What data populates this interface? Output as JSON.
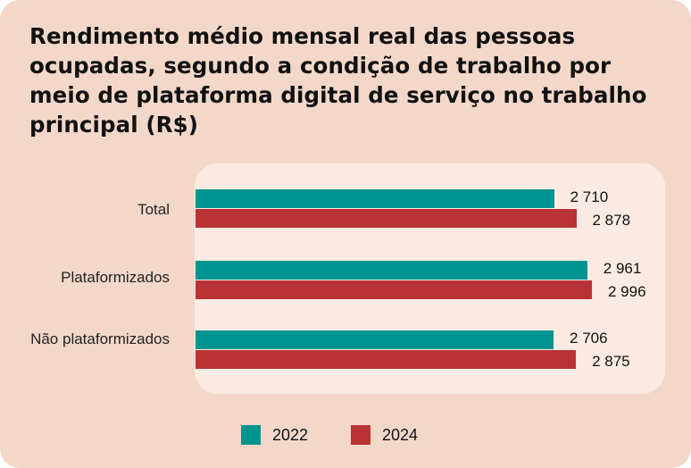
{
  "chart_data": {
    "type": "bar",
    "orientation": "horizontal",
    "title": "Rendimento médio mensal real das pessoas ocupadas, segundo a condição de trabalho por meio de plataforma digital de serviço no trabalho principal (R$)",
    "categories": [
      "Total",
      "Plataformizados",
      "Não plataformizados"
    ],
    "series": [
      {
        "name": "2022",
        "color": "#009490",
        "values": [
          2710,
          2961,
          2706
        ],
        "labels": [
          "2 710",
          "2 961",
          "2 706"
        ]
      },
      {
        "name": "2024",
        "color": "#b93336",
        "values": [
          2878,
          2996,
          2875
        ],
        "labels": [
          "2 878",
          "2 996",
          "2 875"
        ]
      }
    ],
    "xlim": [
      0,
      3050
    ],
    "grid": false,
    "legend": "bottom"
  },
  "colors": {
    "background": "#f3d8ca",
    "panel": "#fbebe3"
  }
}
